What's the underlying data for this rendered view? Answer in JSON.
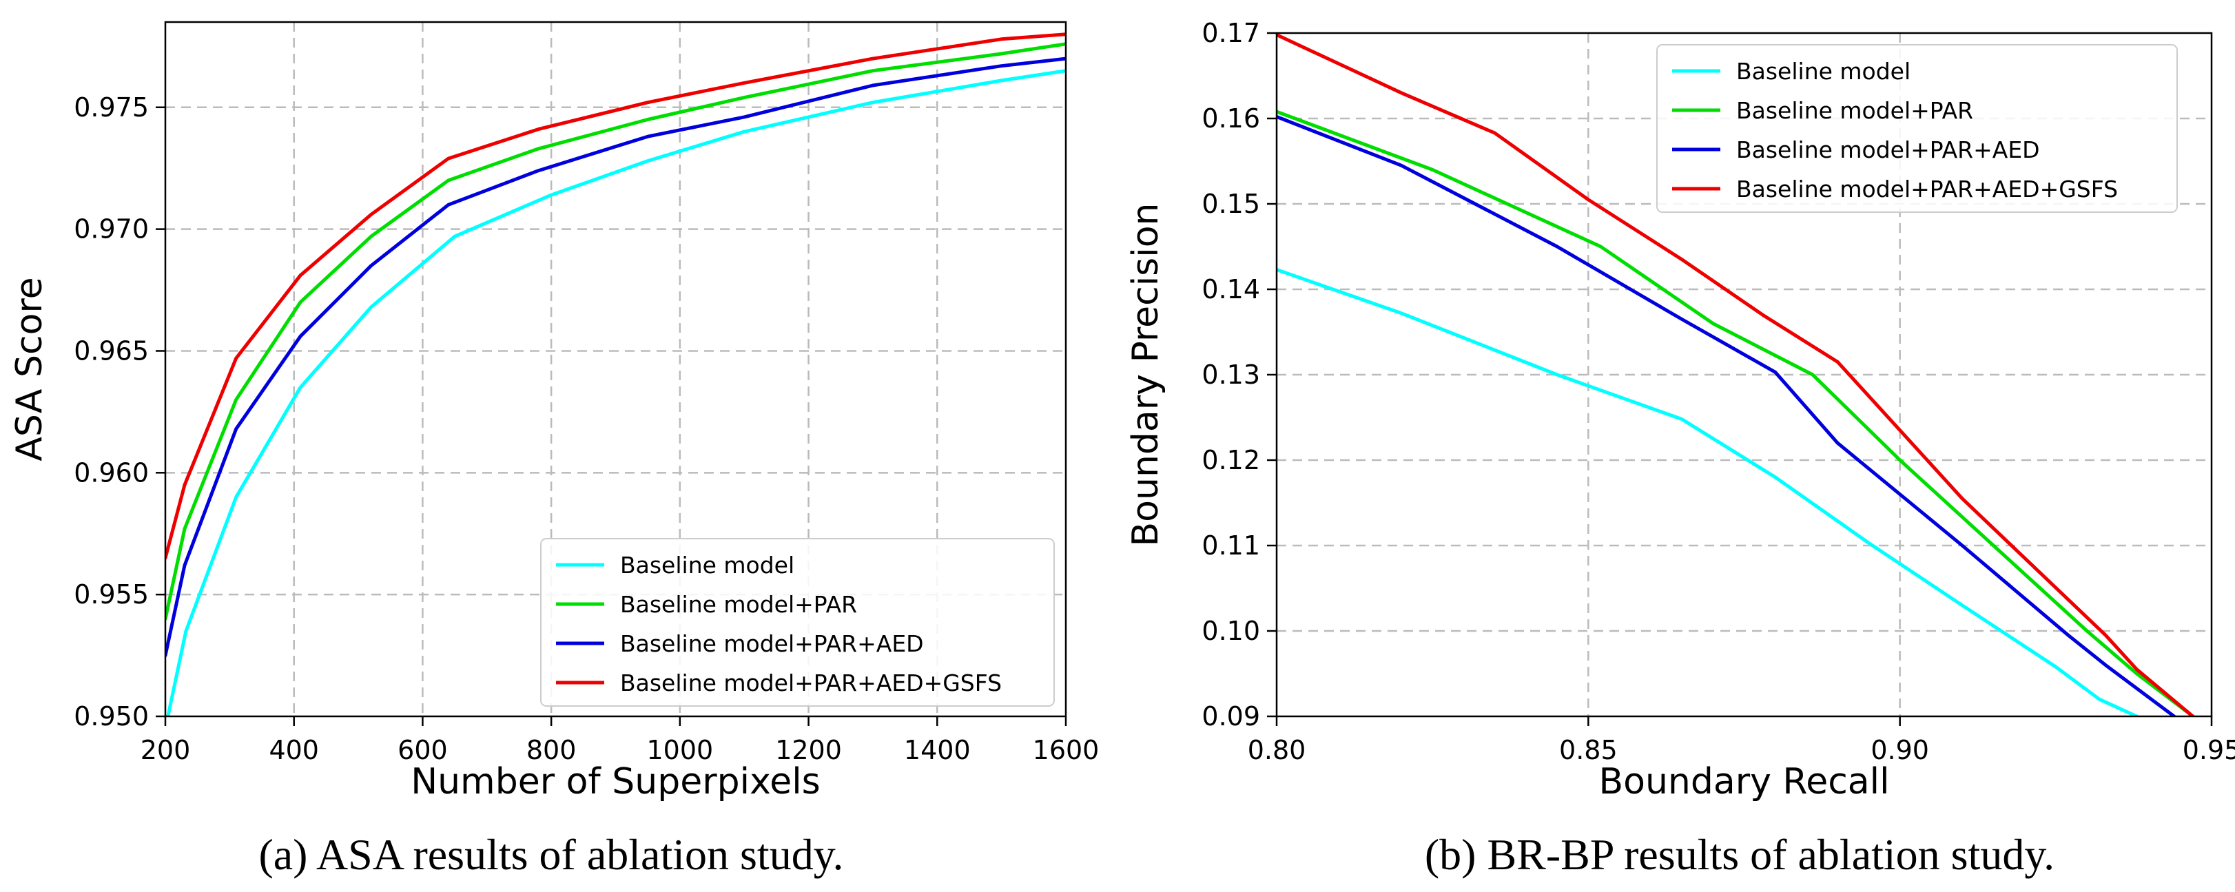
{
  "colors": {
    "baseline": "#00FFFF",
    "par": "#00DD00",
    "par_aed": "#0000DD",
    "par_aed_gsfs": "#EE0000",
    "axis": "#000000",
    "grid": "#BBBBBB"
  },
  "chart_data": [
    {
      "id": "asa",
      "type": "line",
      "title": "",
      "caption": "(a) ASA results of ablation study.",
      "xlabel": "Number of Superpixels",
      "ylabel": "ASA Score",
      "xlim": [
        200,
        1600
      ],
      "ylim": [
        0.95,
        0.9785
      ],
      "xticks": [
        200,
        400,
        600,
        800,
        1000,
        1200,
        1400,
        1600
      ],
      "xtick_labels": [
        "200",
        "400",
        "600",
        "800",
        "1000",
        "1200",
        "1400",
        "1600"
      ],
      "yticks": [
        0.95,
        0.955,
        0.96,
        0.965,
        0.97,
        0.975
      ],
      "ytick_labels": [
        "0.950",
        "0.955",
        "0.960",
        "0.965",
        "0.970",
        "0.975"
      ],
      "grid": true,
      "legend_position": "lower-right",
      "series": [
        {
          "name": "Baseline model",
          "color_key": "baseline",
          "x": [
            200,
            232,
            310,
            410,
            520,
            650,
            800,
            950,
            1100,
            1300,
            1500,
            1600
          ],
          "y": [
            0.9495,
            0.9535,
            0.959,
            0.9635,
            0.9668,
            0.9697,
            0.9714,
            0.9728,
            0.974,
            0.9752,
            0.9761,
            0.9765
          ]
        },
        {
          "name": "Baseline model+PAR",
          "color_key": "par",
          "x": [
            200,
            230,
            310,
            410,
            520,
            640,
            780,
            950,
            1100,
            1300,
            1500,
            1600
          ],
          "y": [
            0.954,
            0.9577,
            0.963,
            0.967,
            0.9697,
            0.972,
            0.9733,
            0.9745,
            0.9754,
            0.9765,
            0.9772,
            0.9776
          ]
        },
        {
          "name": "Baseline model+PAR+AED",
          "color_key": "par_aed",
          "x": [
            200,
            230,
            310,
            410,
            520,
            640,
            780,
            950,
            1100,
            1300,
            1500,
            1600
          ],
          "y": [
            0.9525,
            0.9562,
            0.9618,
            0.9656,
            0.9685,
            0.971,
            0.9724,
            0.9738,
            0.9746,
            0.9759,
            0.9767,
            0.977
          ]
        },
        {
          "name": "Baseline model+PAR+AED+GSFS",
          "color_key": "par_aed_gsfs",
          "x": [
            200,
            230,
            310,
            410,
            520,
            640,
            780,
            950,
            1100,
            1300,
            1500,
            1600
          ],
          "y": [
            0.9565,
            0.9595,
            0.9647,
            0.9681,
            0.9706,
            0.9729,
            0.9741,
            0.9752,
            0.976,
            0.977,
            0.9778,
            0.978
          ]
        }
      ]
    },
    {
      "id": "brbp",
      "type": "line",
      "title": "",
      "caption": "(b) BR-BP results of ablation study.",
      "xlabel": "Boundary Recall",
      "ylabel": "Boundary Precision",
      "xlim": [
        0.8,
        0.95
      ],
      "ylim": [
        0.09,
        0.17
      ],
      "xticks": [
        0.8,
        0.85,
        0.9,
        0.95
      ],
      "xtick_labels": [
        "0.80",
        "0.85",
        "0.90",
        "0.95"
      ],
      "yticks": [
        0.09,
        0.1,
        0.11,
        0.12,
        0.13,
        0.14,
        0.15,
        0.16,
        0.17
      ],
      "ytick_labels": [
        "0.09",
        "0.10",
        "0.11",
        "0.12",
        "0.13",
        "0.14",
        "0.15",
        "0.16",
        "0.17"
      ],
      "grid": true,
      "legend_position": "upper-right",
      "series": [
        {
          "name": "Baseline model",
          "color_key": "baseline",
          "x": [
            0.8,
            0.82,
            0.845,
            0.865,
            0.88,
            0.895,
            0.91,
            0.925,
            0.932,
            0.938
          ],
          "y": [
            0.1423,
            0.1372,
            0.13,
            0.1248,
            0.118,
            0.1103,
            0.103,
            0.0958,
            0.092,
            0.09
          ]
        },
        {
          "name": "Baseline model+PAR",
          "color_key": "par",
          "x": [
            0.8,
            0.825,
            0.852,
            0.87,
            0.886,
            0.9,
            0.915,
            0.93,
            0.938,
            0.947
          ],
          "y": [
            0.1608,
            0.154,
            0.145,
            0.136,
            0.13,
            0.12,
            0.11,
            0.1,
            0.095,
            0.09
          ]
        },
        {
          "name": "Baseline model+PAR+AED",
          "color_key": "par_aed",
          "x": [
            0.8,
            0.82,
            0.845,
            0.865,
            0.88,
            0.89,
            0.91,
            0.927,
            0.933,
            0.944
          ],
          "y": [
            0.1602,
            0.1545,
            0.145,
            0.1365,
            0.1303,
            0.122,
            0.11,
            0.0995,
            0.096,
            0.09
          ]
        },
        {
          "name": "Baseline model+PAR+AED+GSFS",
          "color_key": "par_aed_gsfs",
          "x": [
            0.8,
            0.82,
            0.835,
            0.85,
            0.865,
            0.878,
            0.89,
            0.91,
            0.933,
            0.938,
            0.947
          ],
          "y": [
            0.1698,
            0.163,
            0.1583,
            0.1505,
            0.1435,
            0.137,
            0.1315,
            0.1155,
            0.0995,
            0.0955,
            0.09
          ]
        }
      ]
    }
  ]
}
